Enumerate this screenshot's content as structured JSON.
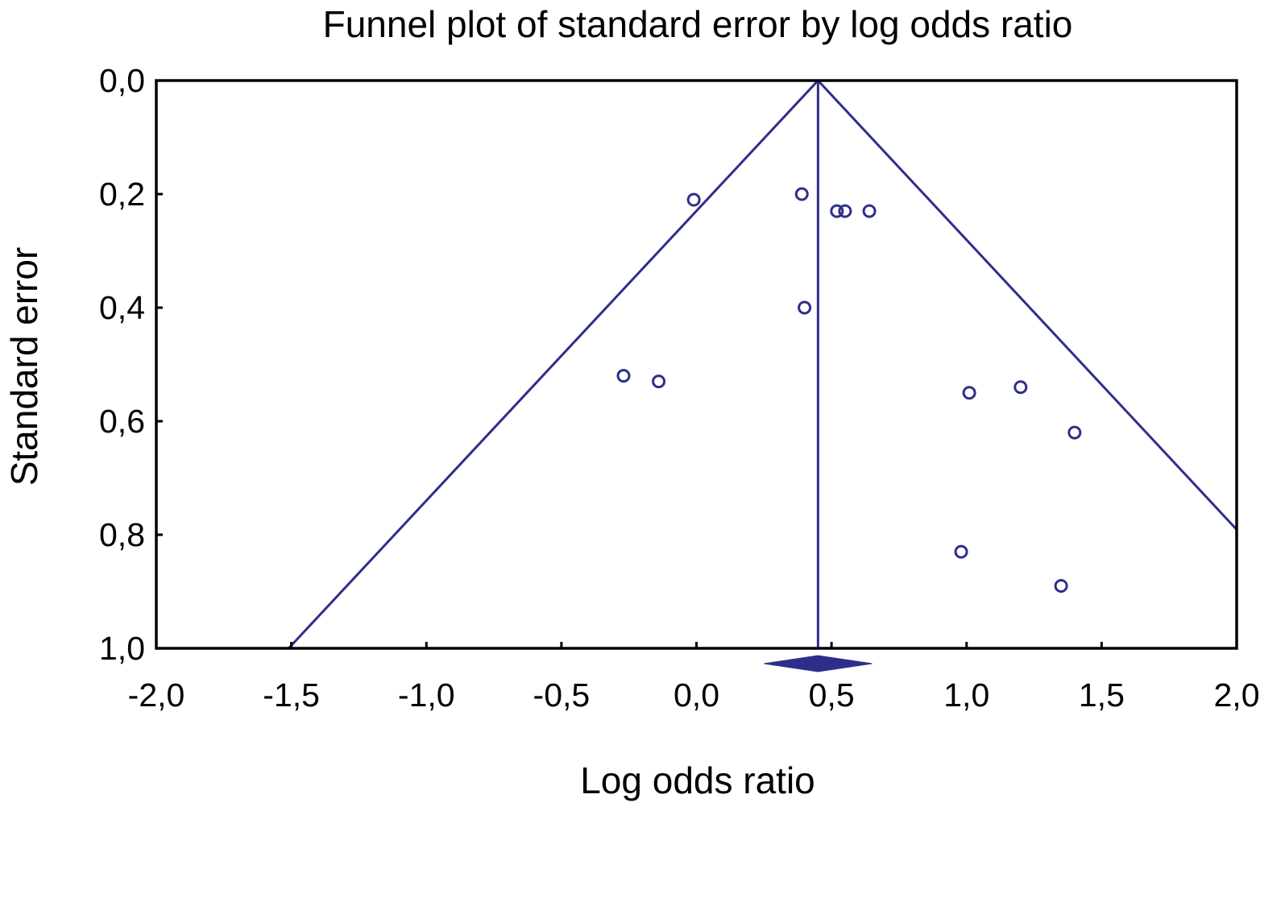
{
  "chart_data": {
    "type": "scatter",
    "title": "Funnel plot of standard error by log odds ratio",
    "xlabel": "Log odds ratio",
    "ylabel": "Standard error",
    "xlim": [
      -2.0,
      2.0
    ],
    "ylim": [
      0.0,
      1.0
    ],
    "y_inverted": true,
    "xticks": [
      -2.0,
      -1.5,
      -1.0,
      -0.5,
      0.0,
      0.5,
      1.0,
      1.5,
      2.0
    ],
    "xtick_labels": [
      "-2,0",
      "-1,5",
      "-1,0",
      "-0,5",
      "0,0",
      "0,5",
      "1,0",
      "1,5",
      "2,0"
    ],
    "yticks": [
      0.0,
      0.2,
      0.4,
      0.6,
      0.8,
      1.0
    ],
    "ytick_labels": [
      "0,0",
      "0,2",
      "0,4",
      "0,6",
      "0,8",
      "1,0"
    ],
    "series": [
      {
        "points": [
          {
            "x": -0.01,
            "y": 0.21
          },
          {
            "x": 0.39,
            "y": 0.2
          },
          {
            "x": 0.52,
            "y": 0.23
          },
          {
            "x": 0.55,
            "y": 0.23
          },
          {
            "x": 0.64,
            "y": 0.23
          },
          {
            "x": 0.4,
            "y": 0.4
          },
          {
            "x": -0.27,
            "y": 0.52
          },
          {
            "x": -0.14,
            "y": 0.53
          },
          {
            "x": 1.01,
            "y": 0.55
          },
          {
            "x": 1.2,
            "y": 0.54
          },
          {
            "x": 1.4,
            "y": 0.62
          },
          {
            "x": 0.98,
            "y": 0.83
          },
          {
            "x": 1.35,
            "y": 0.89
          }
        ]
      }
    ],
    "pooled_estimate": 0.45,
    "pooled_ci": [
      0.25,
      0.65
    ],
    "funnel": "95% pseudo-confidence limits (mean ± 1.96 × SE)",
    "colors": {
      "marker": "#2e2e8a",
      "lines": "#2e2e8a",
      "axes": "#000000"
    },
    "grid": false
  }
}
